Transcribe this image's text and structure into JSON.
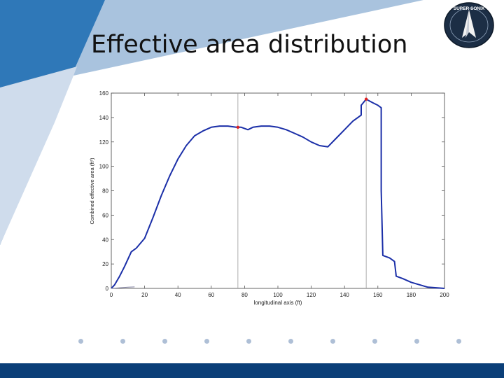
{
  "slide": {
    "title": "Effective area distribution",
    "colors": {
      "dark_blue": "#0b4f8f",
      "mid_blue": "#2f78b8",
      "light_blue": "#a9c3de",
      "footer": "#0b3f78"
    }
  },
  "logo": {
    "name": "rocket-emblem-icon",
    "text": "SUPER SONIX"
  },
  "chart_data": {
    "type": "line",
    "title": "",
    "xlabel": "longitudinal axis (ft)",
    "ylabel": "Combined effective area (ft²)",
    "xlim": [
      0,
      200
    ],
    "ylim": [
      0,
      160
    ],
    "xticks": [
      0,
      20,
      40,
      60,
      80,
      100,
      120,
      140,
      160,
      180,
      200
    ],
    "yticks": [
      0,
      20,
      40,
      60,
      80,
      100,
      120,
      140,
      160
    ],
    "grid": false,
    "series": [
      {
        "color": "#1b2fa8",
        "x": [
          0,
          2,
          5,
          8,
          12,
          15,
          20,
          25,
          30,
          35,
          40,
          45,
          50,
          55,
          60,
          65,
          70,
          75,
          78,
          80,
          82,
          85,
          90,
          95,
          100,
          105,
          110,
          115,
          120,
          125,
          130,
          135,
          140,
          145,
          150,
          150,
          153,
          157,
          160,
          162,
          162,
          163,
          167,
          170,
          171,
          175,
          180,
          185,
          190,
          195,
          200
        ],
        "y": [
          0,
          3,
          10,
          18,
          30,
          33,
          41,
          58,
          76,
          92,
          106,
          117,
          125,
          129,
          132,
          133,
          133,
          132,
          132,
          131,
          130,
          132,
          133,
          133,
          132,
          130,
          127,
          124,
          120,
          117,
          116,
          123,
          130,
          137,
          142,
          150,
          155,
          152,
          150,
          148,
          80,
          27,
          25,
          22,
          10,
          8,
          5,
          3,
          1,
          0.5,
          0
        ]
      },
      {
        "color": "#8080a0",
        "x": [
          0,
          5,
          10,
          14
        ],
        "y": [
          0,
          0.5,
          1,
          1.2
        ]
      }
    ],
    "markers": [
      {
        "x": 76,
        "y": 132
      },
      {
        "x": 153,
        "y": 155
      }
    ],
    "reference_lines": [
      76,
      153
    ]
  }
}
